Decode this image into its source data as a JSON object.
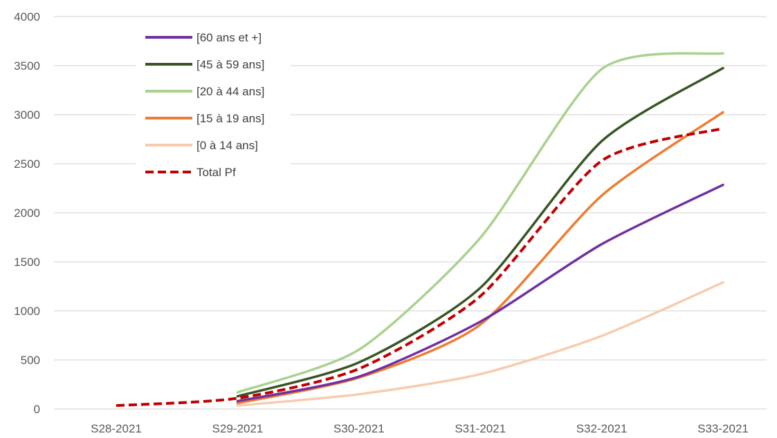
{
  "chart_data": {
    "type": "line",
    "title": "",
    "xlabel": "",
    "ylabel": "",
    "categories": [
      "S28-2021",
      "S29-2021",
      "S30-2021",
      "S31-2021",
      "S32-2021",
      "S33-2021"
    ],
    "ylim": [
      0,
      4000
    ],
    "yticks": [
      "0",
      "500",
      "1000",
      "1500",
      "2000",
      "2500",
      "3000",
      "3500",
      "4000"
    ],
    "grid": true,
    "legend_position": "top-left",
    "series": [
      {
        "name": "[60 ans et +]",
        "color": "#7030a0",
        "dashed": false,
        "values": [
          null,
          80,
          330,
          890,
          1680,
          2285
        ]
      },
      {
        "name": "[45 à 59 ans]",
        "color": "#375623",
        "dashed": false,
        "values": [
          null,
          130,
          475,
          1235,
          2730,
          3475
        ]
      },
      {
        "name": "[20 à 44 ans]",
        "color": "#a9d18e",
        "dashed": false,
        "values": [
          null,
          170,
          605,
          1745,
          3465,
          3625
        ]
      },
      {
        "name": "[15 à 19 ans]",
        "color": "#ed7d31",
        "dashed": false,
        "values": [
          null,
          60,
          320,
          860,
          2175,
          3025
        ]
      },
      {
        "name": "[0 à 14 ans]",
        "color": "#f8cbad",
        "dashed": false,
        "values": [
          null,
          35,
          150,
          355,
          745,
          1290
        ]
      },
      {
        "name": "Total Pf",
        "color": "#c00000",
        "dashed": true,
        "values": [
          35,
          110,
          410,
          1150,
          2530,
          2860
        ]
      }
    ]
  }
}
